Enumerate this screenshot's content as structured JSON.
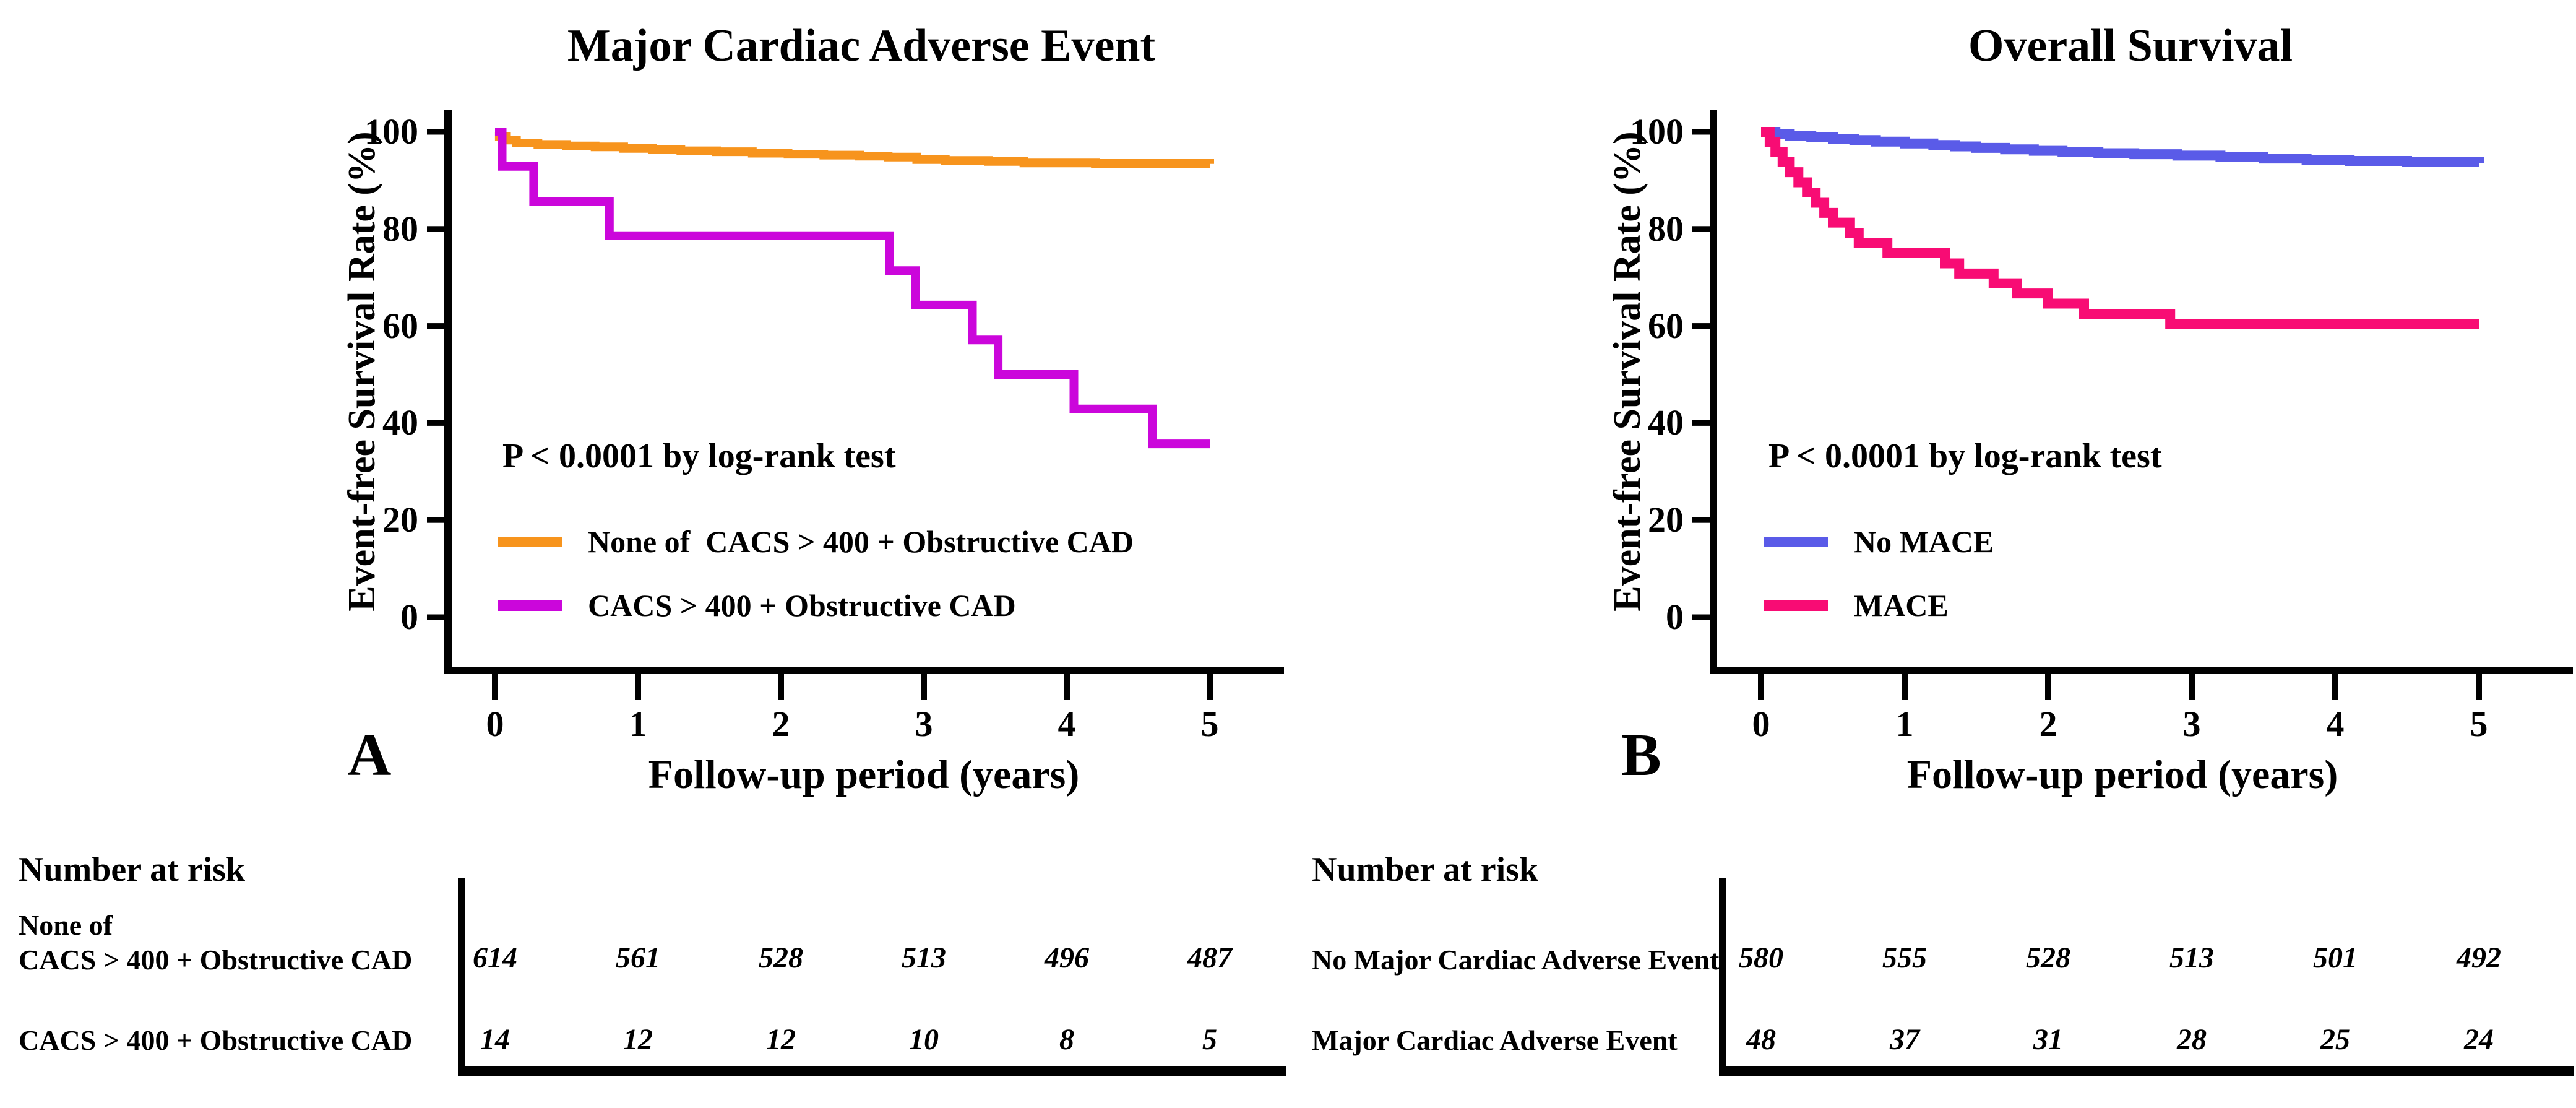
{
  "figure": {
    "background": "#FFFFFF",
    "panels": [
      {
        "letter": "A"
      },
      {
        "letter": "B"
      }
    ]
  },
  "chart_data": [
    {
      "type": "line",
      "km_step": true,
      "title": "Major Cardiac Adverse Event",
      "xlabel": "Follow-up period (years)",
      "ylabel": "Event-free Survival Rate (%)",
      "annotation": "P < 0.0001 by log-rank test",
      "xlim": [
        0,
        5.5
      ],
      "ylim": [
        0,
        100
      ],
      "x_ticks": [
        0,
        1,
        2,
        3,
        4,
        5
      ],
      "y_ticks": [
        0,
        20,
        40,
        60,
        80,
        100
      ],
      "grid": false,
      "legend_position": "lower-left",
      "series": [
        {
          "name": "None of  CACS > 400 + Obstructive CAD",
          "color": "#F7941D",
          "step_points": [
            [
              0,
              100
            ],
            [
              0.03,
              99.0
            ],
            [
              0.08,
              98.3
            ],
            [
              0.15,
              97.7
            ],
            [
              0.3,
              97.4
            ],
            [
              0.5,
              97.1
            ],
            [
              0.7,
              96.9
            ],
            [
              0.9,
              96.6
            ],
            [
              1.1,
              96.4
            ],
            [
              1.3,
              96.1
            ],
            [
              1.55,
              95.9
            ],
            [
              1.8,
              95.6
            ],
            [
              2.05,
              95.4
            ],
            [
              2.3,
              95.2
            ],
            [
              2.55,
              95.0
            ],
            [
              2.75,
              94.8
            ],
            [
              2.95,
              94.3
            ],
            [
              3.15,
              94.1
            ],
            [
              3.45,
              93.9
            ],
            [
              3.7,
              93.6
            ],
            [
              4.2,
              93.5
            ],
            [
              5,
              93.4
            ]
          ]
        },
        {
          "name": "CACS > 400 + Obstructive CAD",
          "color": "#CB06DB",
          "step_points": [
            [
              0,
              100
            ],
            [
              0.05,
              92.9
            ],
            [
              0.27,
              85.7
            ],
            [
              0.8,
              78.6
            ],
            [
              2.76,
              71.4
            ],
            [
              2.94,
              64.3
            ],
            [
              3.34,
              57.1
            ],
            [
              3.52,
              50.0
            ],
            [
              4.05,
              42.9
            ],
            [
              4.6,
              35.7
            ],
            [
              5,
              35.7
            ]
          ]
        }
      ],
      "number_at_risk": {
        "title": "Number at risk",
        "time_points": [
          0,
          1,
          2,
          3,
          4,
          5
        ],
        "rows": [
          {
            "label_lines": [
              "None of",
              "CACS > 400 + Obstructive CAD"
            ],
            "values": [
              "614",
              "561",
              "528",
              "513",
              "496",
              "487"
            ]
          },
          {
            "label_lines": [
              "CACS > 400 + Obstructive CAD"
            ],
            "values": [
              "14",
              "12",
              "12",
              "10",
              "8",
              "5"
            ]
          }
        ]
      }
    },
    {
      "type": "line",
      "km_step": true,
      "title": "Overall Survival",
      "xlabel": "Follow-up period (years)",
      "ylabel": "Event-free Survival Rate (%)",
      "annotation": "P < 0.0001 by log-rank test",
      "xlim": [
        0,
        5.5
      ],
      "ylim": [
        0,
        100
      ],
      "x_ticks": [
        0,
        1,
        2,
        3,
        4,
        5
      ],
      "y_ticks": [
        0,
        20,
        40,
        60,
        80,
        100
      ],
      "grid": false,
      "legend_position": "lower-left",
      "series": [
        {
          "name": "No MACE",
          "color": "#5A5BE8",
          "step_points": [
            [
              0,
              100
            ],
            [
              0.1,
              99.6
            ],
            [
              0.2,
              99.2
            ],
            [
              0.35,
              98.9
            ],
            [
              0.5,
              98.6
            ],
            [
              0.65,
              98.3
            ],
            [
              0.8,
              98.0
            ],
            [
              1.0,
              97.6
            ],
            [
              1.2,
              97.3
            ],
            [
              1.35,
              97.0
            ],
            [
              1.5,
              96.7
            ],
            [
              1.7,
              96.4
            ],
            [
              1.9,
              96.1
            ],
            [
              2.1,
              95.9
            ],
            [
              2.35,
              95.6
            ],
            [
              2.6,
              95.4
            ],
            [
              2.9,
              95.1
            ],
            [
              3.2,
              94.8
            ],
            [
              3.5,
              94.5
            ],
            [
              3.8,
              94.2
            ],
            [
              4.1,
              94.0
            ],
            [
              4.5,
              93.8
            ],
            [
              5,
              93.6
            ]
          ]
        },
        {
          "name": "MACE",
          "color": "#F80C74",
          "step_points": [
            [
              0,
              100
            ],
            [
              0.06,
              97.9
            ],
            [
              0.1,
              95.8
            ],
            [
              0.15,
              93.8
            ],
            [
              0.2,
              91.7
            ],
            [
              0.26,
              89.6
            ],
            [
              0.32,
              87.5
            ],
            [
              0.38,
              85.4
            ],
            [
              0.44,
              83.3
            ],
            [
              0.5,
              81.3
            ],
            [
              0.62,
              79.2
            ],
            [
              0.68,
              77.1
            ],
            [
              0.88,
              75.0
            ],
            [
              1.28,
              72.9
            ],
            [
              1.38,
              70.8
            ],
            [
              1.62,
              68.8
            ],
            [
              1.78,
              66.7
            ],
            [
              2.0,
              64.6
            ],
            [
              2.25,
              62.5
            ],
            [
              2.85,
              60.4
            ],
            [
              5,
              60.4
            ]
          ]
        }
      ],
      "number_at_risk": {
        "title": "Number at risk",
        "time_points": [
          0,
          1,
          2,
          3,
          4,
          5
        ],
        "rows": [
          {
            "label_lines": [
              "No Major Cardiac Adverse Event"
            ],
            "values": [
              "580",
              "555",
              "528",
              "513",
              "501",
              "492"
            ]
          },
          {
            "label_lines": [
              "Major Cardiac Adverse Event"
            ],
            "values": [
              "48",
              "37",
              "31",
              "28",
              "25",
              "24"
            ]
          }
        ]
      }
    }
  ]
}
